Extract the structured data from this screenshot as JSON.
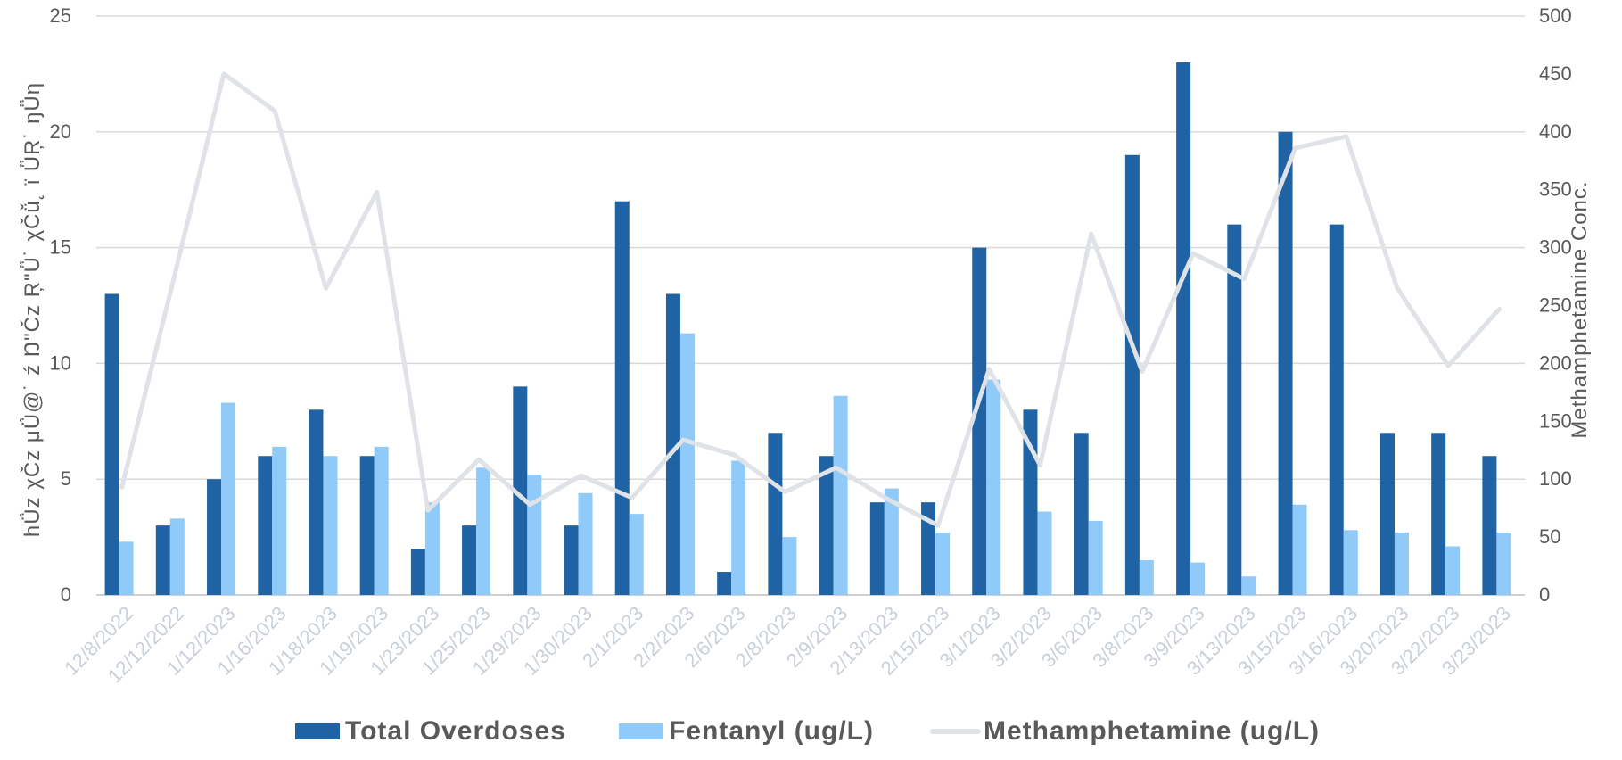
{
  "chart_data": {
    "type": "bar",
    "title": "",
    "categories": [
      "12/8/2022",
      "12/12/2022",
      "1/12/2023",
      "1/16/2023",
      "1/18/2023",
      "1/19/2023",
      "1/23/2023",
      "1/25/2023",
      "1/29/2023",
      "1/30/2023",
      "2/1/2023",
      "2/2/2023",
      "2/6/2023",
      "2/8/2023",
      "2/9/2023",
      "2/13/2023",
      "2/15/2023",
      "3/1/2023",
      "3/2/2023",
      "3/6/2023",
      "3/8/2023",
      "3/9/2023",
      "3/13/2023",
      "3/15/2023",
      "3/16/2023",
      "3/20/2023",
      "3/22/2023",
      "3/23/2023"
    ],
    "series": [
      {
        "name": "Total Overdoses",
        "type": "bar",
        "axis": "left",
        "color": "#1f63a5",
        "values": [
          13,
          3,
          5,
          6,
          8,
          6,
          2,
          3,
          9,
          3,
          17,
          13,
          1,
          7,
          6,
          4,
          4,
          15,
          8,
          7,
          19,
          23,
          16,
          20,
          16,
          7,
          7,
          6
        ]
      },
      {
        "name": "Fentanyl (ug/L)",
        "type": "bar",
        "axis": "left",
        "color": "#8fcaf9",
        "values": [
          2.3,
          3.3,
          8.3,
          6.4,
          6.0,
          6.4,
          4.0,
          5.5,
          5.2,
          4.4,
          3.5,
          11.3,
          5.8,
          2.5,
          8.6,
          4.6,
          2.7,
          9.3,
          3.6,
          3.2,
          1.5,
          1.4,
          0.8,
          3.9,
          2.8,
          2.7,
          2.1,
          2.7
        ]
      },
      {
        "name": "Methamphetamine (ug/L)",
        "type": "line",
        "axis": "right",
        "color": "#dfe2e6",
        "values": [
          93,
          270,
          450,
          418,
          265,
          348,
          73,
          117,
          78,
          103,
          84,
          134,
          121,
          89,
          110,
          83,
          60,
          195,
          112,
          312,
          193,
          295,
          273,
          386,
          396,
          265,
          198,
          247
        ]
      }
    ],
    "ylabel": "hǗz χČz μǗ@˙ ź Ŋ\"Čz Ŗ\"Ǚ˙ χČǚ˛ ï ǙŖ˙ ŋǙη",
    "y2label": "Methamphetamine Conc.",
    "ylim": [
      0,
      25
    ],
    "y2lim": [
      0,
      500
    ],
    "yticks": [
      "0",
      "5",
      "10",
      "15",
      "20",
      "25"
    ],
    "y2ticks": [
      "0",
      "50",
      "100",
      "150",
      "200",
      "250",
      "300",
      "350",
      "400",
      "450",
      "500"
    ],
    "grid": true,
    "legend_position": "bottom",
    "legend": [
      "Total Overdoses",
      "Fentanyl (ug/L)",
      "Methamphetamine (ug/L)"
    ]
  }
}
